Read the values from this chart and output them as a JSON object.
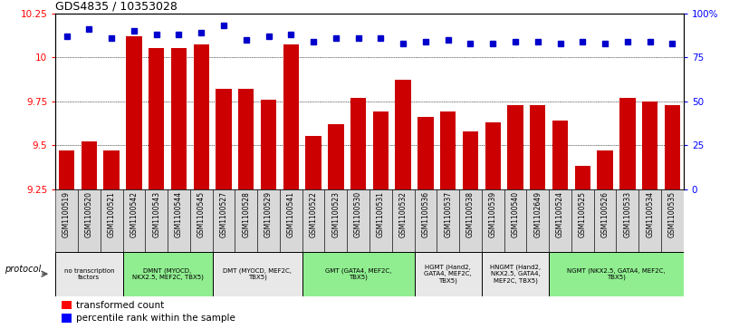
{
  "title": "GDS4835 / 10353028",
  "samples": [
    "GSM1100519",
    "GSM1100520",
    "GSM1100521",
    "GSM1100542",
    "GSM1100543",
    "GSM1100544",
    "GSM1100545",
    "GSM1100527",
    "GSM1100528",
    "GSM1100529",
    "GSM1100541",
    "GSM1100522",
    "GSM1100523",
    "GSM1100530",
    "GSM1100531",
    "GSM1100532",
    "GSM1100536",
    "GSM1100537",
    "GSM1100538",
    "GSM1100539",
    "GSM1100540",
    "GSM1102649",
    "GSM1100524",
    "GSM1100525",
    "GSM1100526",
    "GSM1100533",
    "GSM1100534",
    "GSM1100535"
  ],
  "bar_values": [
    9.47,
    9.52,
    9.47,
    10.12,
    10.05,
    10.05,
    10.07,
    9.82,
    9.82,
    9.76,
    10.07,
    9.55,
    9.62,
    9.77,
    9.69,
    9.87,
    9.66,
    9.69,
    9.58,
    9.63,
    9.73,
    9.73,
    9.64,
    9.38,
    9.47,
    9.77,
    9.75,
    9.73
  ],
  "dot_values": [
    87,
    91,
    86,
    90,
    88,
    88,
    89,
    93,
    85,
    87,
    88,
    84,
    86,
    86,
    86,
    83,
    84,
    85,
    83,
    83,
    84,
    84,
    83,
    84,
    83,
    84,
    84,
    83
  ],
  "ylim_left": [
    9.25,
    10.25
  ],
  "ylim_right": [
    0,
    100
  ],
  "yticks_left": [
    9.25,
    9.5,
    9.75,
    10.0,
    10.25
  ],
  "yticks_right": [
    0,
    25,
    50,
    75,
    100
  ],
  "ytick_labels_left": [
    "9.25",
    "9.5",
    "9.75",
    "10",
    "10.25"
  ],
  "ytick_labels_right": [
    "0",
    "25",
    "50",
    "75",
    "100%"
  ],
  "bar_color": "#cc0000",
  "dot_color": "#0000cc",
  "protocol_groups": [
    {
      "label": "no transcription\nfactors",
      "start": 0,
      "end": 2,
      "color": "#e8e8e8"
    },
    {
      "label": "DMNT (MYOCD,\nNKX2.5, MEF2C, TBX5)",
      "start": 3,
      "end": 6,
      "color": "#90ee90"
    },
    {
      "label": "DMT (MYOCD, MEF2C,\nTBX5)",
      "start": 7,
      "end": 10,
      "color": "#e8e8e8"
    },
    {
      "label": "GMT (GATA4, MEF2C,\nTBX5)",
      "start": 11,
      "end": 15,
      "color": "#90ee90"
    },
    {
      "label": "HGMT (Hand2,\nGATA4, MEF2C,\nTBX5)",
      "start": 16,
      "end": 18,
      "color": "#e8e8e8"
    },
    {
      "label": "HNGMT (Hand2,\nNKX2.5, GATA4,\nMEF2C, TBX5)",
      "start": 19,
      "end": 21,
      "color": "#e8e8e8"
    },
    {
      "label": "NGMT (NKX2.5, GATA4, MEF2C,\nTBX5)",
      "start": 22,
      "end": 27,
      "color": "#90ee90"
    }
  ],
  "ymin": 9.25
}
